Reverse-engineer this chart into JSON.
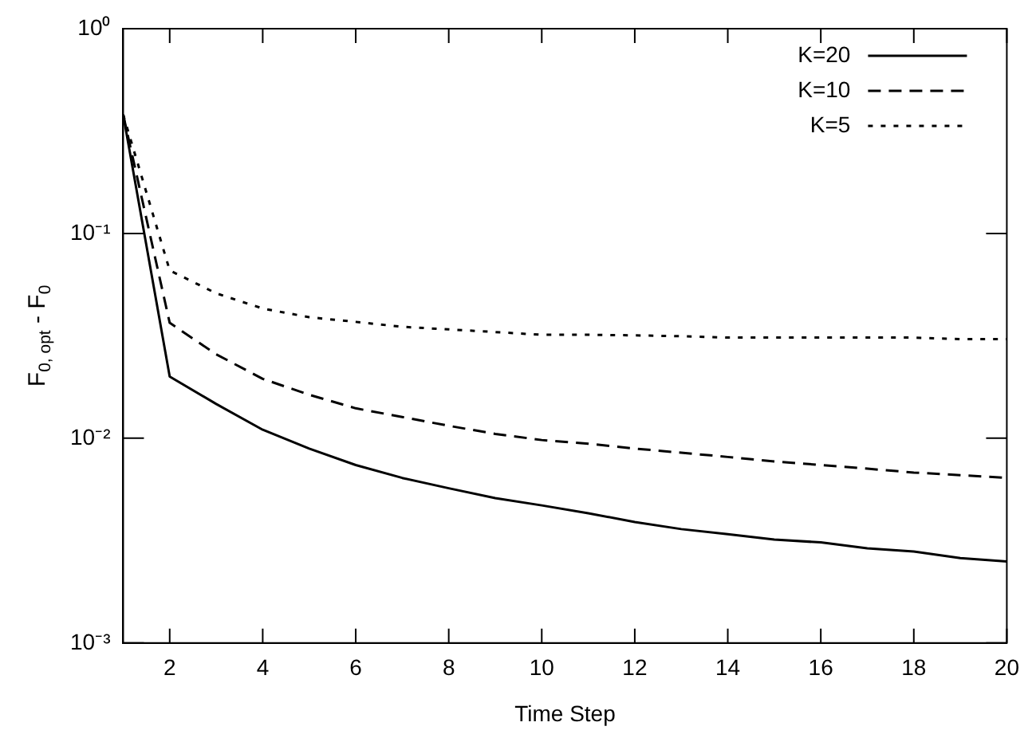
{
  "chart_data": {
    "type": "line",
    "xlabel": "Time Step",
    "ylabel": "F$_{0, opt}$ - F$_{0}$",
    "x": [
      1,
      2,
      3,
      4,
      5,
      6,
      7,
      8,
      9,
      10,
      11,
      12,
      13,
      14,
      15,
      16,
      17,
      18,
      19,
      20
    ],
    "series": [
      {
        "name": "K=20",
        "color": "#000000",
        "line_style": "solid",
        "values": [
          0.38,
          0.02,
          0.0147,
          0.011,
          0.0089,
          0.0074,
          0.0064,
          0.0057,
          0.0051,
          0.0047,
          0.0043,
          0.0039,
          0.0036,
          0.0034,
          0.0032,
          0.0031,
          0.0029,
          0.0028,
          0.0026,
          0.0025
        ]
      },
      {
        "name": "K=10",
        "color": "#000000",
        "line_style": "dashed",
        "values": [
          0.38,
          0.0366,
          0.0257,
          0.0195,
          0.0163,
          0.014,
          0.0127,
          0.0115,
          0.0105,
          0.0098,
          0.0094,
          0.0089,
          0.0085,
          0.0081,
          0.0077,
          0.0074,
          0.0071,
          0.0068,
          0.0066,
          0.0064
        ]
      },
      {
        "name": "K=5",
        "color": "#000000",
        "line_style": "dotted",
        "values": [
          0.38,
          0.066,
          0.051,
          0.043,
          0.039,
          0.037,
          0.035,
          0.034,
          0.033,
          0.032,
          0.032,
          0.0318,
          0.0315,
          0.031,
          0.031,
          0.031,
          0.031,
          0.031,
          0.0305,
          0.0305
        ]
      }
    ],
    "log": "y",
    "xlim": [
      1,
      20
    ],
    "xticks": [
      2,
      4,
      6,
      8,
      10,
      12,
      14,
      16,
      18,
      20
    ],
    "ylim": [
      0.001,
      1
    ],
    "yticks": [
      {
        "value": 0.001,
        "label": "10⁻³"
      },
      {
        "value": 0.01,
        "label": "10⁻²"
      },
      {
        "value": 0.1,
        "label": "10⁻¹"
      },
      {
        "value": 1,
        "label": "10⁰"
      }
    ],
    "grid": false,
    "legend": "top right",
    "marker": "none"
  }
}
